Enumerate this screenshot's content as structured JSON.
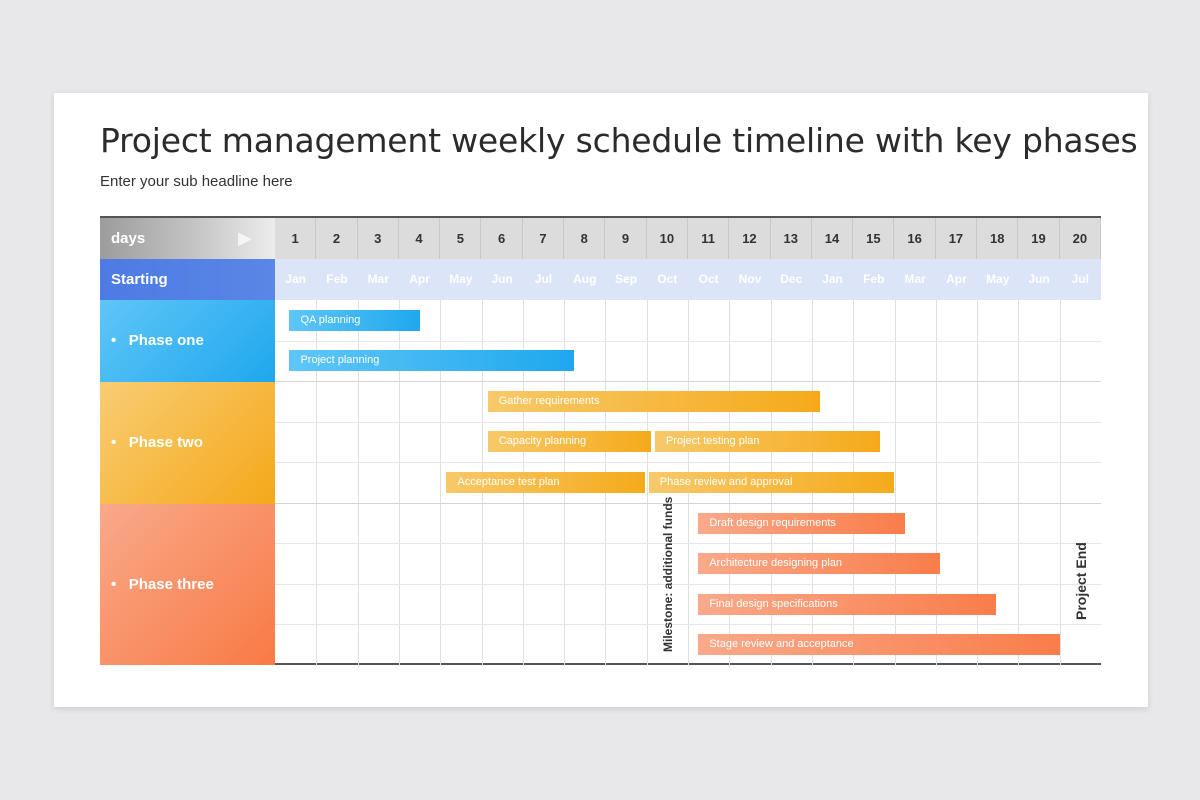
{
  "title": "Project management weekly schedule timeline with key phases",
  "subtitle": "Enter your sub headline here",
  "header": {
    "days_label": "days",
    "starting_label": "Starting",
    "days": [
      "1",
      "2",
      "3",
      "4",
      "5",
      "6",
      "7",
      "8",
      "9",
      "10",
      "11",
      "12",
      "13",
      "14",
      "15",
      "16",
      "17",
      "18",
      "19",
      "20"
    ],
    "months": [
      "Jan",
      "Feb",
      "Mar",
      "Apr",
      "May",
      "Jun",
      "Jul",
      "Aug",
      "Sep",
      "Oct",
      "Oct",
      "Nov",
      "Dec",
      "Jan",
      "Feb",
      "Mar",
      "Apr",
      "May",
      "Jun",
      "Jul"
    ]
  },
  "phases": [
    {
      "label": "Phase one",
      "color_from": "#5fc6f7",
      "color_to": "#1fa7ee"
    },
    {
      "label": "Phase two",
      "color_from": "#f8cd73",
      "color_to": "#f5a81a"
    },
    {
      "label": "Phase three",
      "color_from": "#f9a98a",
      "color_to": "#f97a45"
    }
  ],
  "tasks": [
    {
      "label": "QA planning",
      "phase": 0,
      "start": 1.35,
      "end": 4.5
    },
    {
      "label": "Project planning",
      "phase": 0,
      "start": 1.35,
      "end": 8.25
    },
    {
      "label": "Gather requirements",
      "phase": 1,
      "start": 6.15,
      "end": 14.2
    },
    {
      "label": "Capacity planning",
      "phase": 1,
      "start": 6.15,
      "end": 10.1
    },
    {
      "label": "Project testing plan",
      "phase": 1,
      "start": 10.2,
      "end": 15.65
    },
    {
      "label": "Acceptance test plan",
      "phase": 1,
      "start": 5.15,
      "end": 9.95
    },
    {
      "label": "Phase review and approval",
      "phase": 1,
      "start": 10.05,
      "end": 16.0
    },
    {
      "label": "Draft design requirements",
      "phase": 2,
      "start": 11.25,
      "end": 16.25
    },
    {
      "label": "Architecture designing plan",
      "phase": 2,
      "start": 11.25,
      "end": 17.1
    },
    {
      "label": "Final design specifications",
      "phase": 2,
      "start": 11.25,
      "end": 18.45
    },
    {
      "label": "Stage review and acceptance",
      "phase": 2,
      "start": 11.25,
      "end": 20.0
    }
  ],
  "milestone": {
    "label": "Milestone: additional funds",
    "day": 10
  },
  "project_end": {
    "label": "Project End",
    "day": 20
  }
}
